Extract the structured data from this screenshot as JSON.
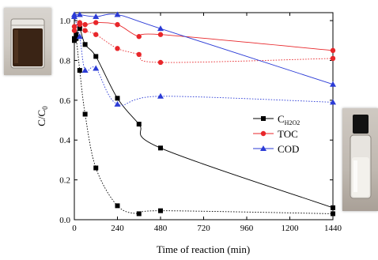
{
  "chart_data": {
    "type": "line",
    "xlabel": "Time of reaction (min)",
    "ylabel": "C/C",
    "ylabel_sub": "0",
    "xlim": [
      0,
      1440
    ],
    "ylim": [
      0.0,
      1.04
    ],
    "xticks": [
      "0",
      "240",
      "480",
      "720",
      "960",
      "1200",
      "1440"
    ],
    "yticks": [
      "0.0",
      "0.2",
      "0.4",
      "0.6",
      "0.8",
      "1.0"
    ],
    "legend": {
      "placement": "center-right",
      "entries": [
        {
          "main": "C",
          "sub": "H2O2",
          "marker": "square",
          "color": "#000000"
        },
        {
          "main": "TOC",
          "sub": "",
          "marker": "circle",
          "color": "#e8262a"
        },
        {
          "main": "COD",
          "sub": "",
          "marker": "triangle",
          "color": "#2b3bd6"
        }
      ]
    },
    "series": [
      {
        "marker": "square",
        "color": "#000000",
        "line": "solid",
        "x": [
          0,
          10,
          30,
          60,
          120,
          240,
          360,
          480,
          1440
        ],
        "y": [
          0.91,
          0.93,
          0.96,
          0.88,
          0.82,
          0.61,
          0.48,
          0.36,
          0.06
        ]
      },
      {
        "marker": "square",
        "color": "#000000",
        "line": "dotted",
        "x": [
          0,
          10,
          30,
          60,
          120,
          240,
          360,
          480,
          1440
        ],
        "y": [
          0.9,
          0.91,
          0.75,
          0.53,
          0.26,
          0.07,
          0.03,
          0.045,
          0.03
        ]
      },
      {
        "marker": "circle",
        "color": "#e8262a",
        "line": "solid",
        "x": [
          0,
          30,
          60,
          120,
          240,
          360,
          480,
          1440
        ],
        "y": [
          0.97,
          0.99,
          0.98,
          0.99,
          0.98,
          0.92,
          0.93,
          0.85
        ]
      },
      {
        "marker": "circle",
        "color": "#e8262a",
        "line": "dotted",
        "x": [
          0,
          30,
          60,
          120,
          240,
          360,
          480,
          1440
        ],
        "y": [
          0.95,
          0.98,
          0.95,
          0.93,
          0.86,
          0.83,
          0.79,
          0.81
        ]
      },
      {
        "marker": "triangle",
        "color": "#2b3bd6",
        "line": "solid",
        "x": [
          0,
          30,
          120,
          240,
          480,
          1440
        ],
        "y": [
          1.03,
          1.03,
          1.02,
          1.03,
          0.96,
          0.68
        ]
      },
      {
        "marker": "triangle",
        "color": "#2b3bd6",
        "line": "dotted",
        "x": [
          0,
          30,
          60,
          120,
          240,
          480,
          1440
        ],
        "y": [
          1.02,
          0.92,
          0.75,
          0.76,
          0.58,
          0.62,
          0.59
        ]
      }
    ]
  },
  "photos": {
    "left": {
      "description_icon": "beaker-dark-liquid-photo"
    },
    "right": {
      "description_icon": "vial-clear-liquid-photo"
    }
  }
}
